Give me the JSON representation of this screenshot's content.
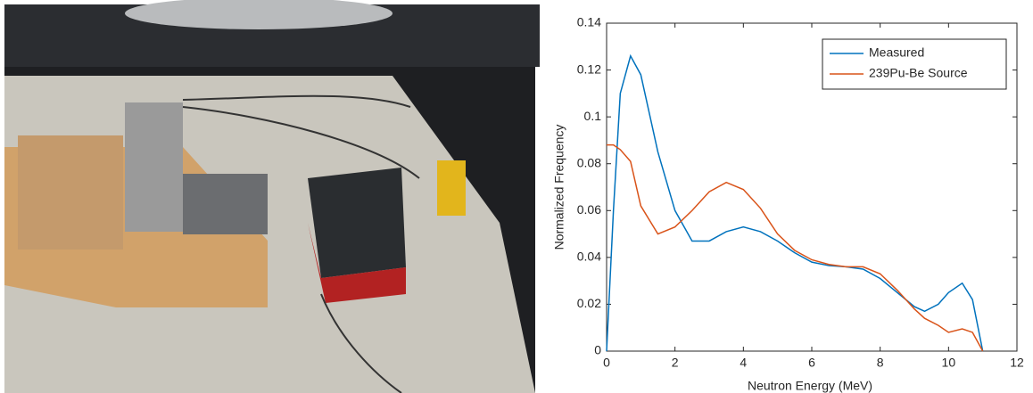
{
  "chart_data": {
    "type": "line",
    "xlabel": "Neutron Energy (MeV)",
    "ylabel": "Normalized Frequency",
    "x": [
      0,
      0.2,
      0.4,
      0.7,
      1,
      1.5,
      2,
      2.5,
      3,
      3.5,
      4,
      4.5,
      5,
      5.5,
      6,
      6.5,
      7,
      7.5,
      8,
      8.5,
      9,
      9.3,
      9.7,
      10,
      10.4,
      10.7,
      11
    ],
    "series": [
      {
        "name": "Measured",
        "color": "#0072bd",
        "values": [
          0,
          0.06,
          0.11,
          0.126,
          0.118,
          0.085,
          0.06,
          0.047,
          0.047,
          0.051,
          0.053,
          0.051,
          0.047,
          0.042,
          0.038,
          0.0365,
          0.036,
          0.035,
          0.031,
          0.025,
          0.019,
          0.017,
          0.02,
          0.025,
          0.029,
          0.022,
          0
        ]
      },
      {
        "name": "239Pu-Be Source",
        "color": "#d95319",
        "values": [
          0.088,
          0.088,
          0.086,
          0.081,
          0.062,
          0.05,
          0.053,
          0.06,
          0.068,
          0.072,
          0.069,
          0.061,
          0.05,
          0.043,
          0.039,
          0.037,
          0.036,
          0.036,
          0.033,
          0.026,
          0.018,
          0.014,
          0.011,
          0.008,
          0.0095,
          0.008,
          0
        ]
      }
    ],
    "xlim": [
      0,
      12
    ],
    "xticks": [
      0,
      2,
      4,
      6,
      8,
      10,
      12
    ],
    "ylim": [
      0,
      0.14
    ],
    "yticks": [
      0,
      0.02,
      0.04,
      0.06,
      0.08,
      0.1,
      0.12,
      0.14
    ],
    "legend": "top-right"
  }
}
